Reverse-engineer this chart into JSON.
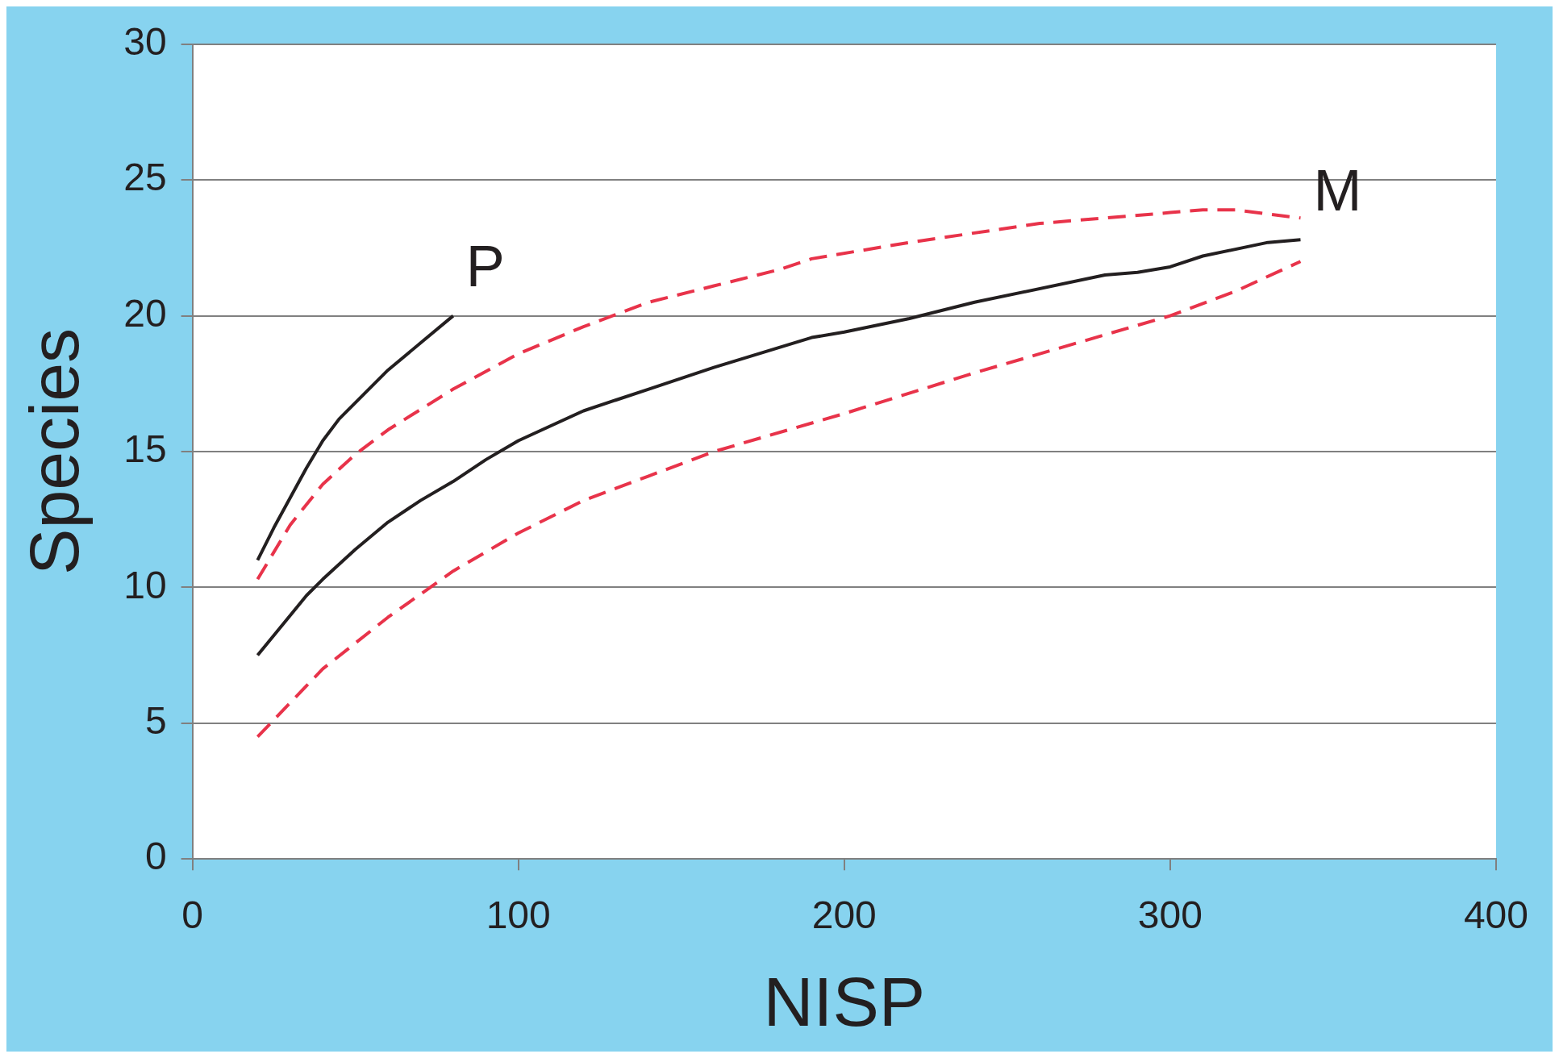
{
  "chart_data": {
    "type": "line",
    "xlabel": "NISP",
    "ylabel": "Species",
    "xlim": [
      0,
      400
    ],
    "xticks": [
      0,
      100,
      200,
      300,
      400
    ],
    "ylim": [
      0,
      30
    ],
    "yticks": [
      0,
      5,
      10,
      15,
      20,
      25,
      30
    ],
    "grid": "y",
    "legend": false,
    "marker": "none",
    "series": [
      {
        "name": "P",
        "color": "#231f20",
        "line_style": "solid",
        "x": [
          20,
          25,
          30,
          35,
          40,
          45,
          60,
          70,
          80
        ],
        "values": [
          11.0,
          12.2,
          13.3,
          14.4,
          15.4,
          16.2,
          18.0,
          19.0,
          20.0
        ]
      },
      {
        "name": "M",
        "color": "#231f20",
        "line_style": "solid",
        "x": [
          20,
          35,
          40,
          50,
          60,
          70,
          80,
          90,
          100,
          120,
          130,
          140,
          160,
          190,
          200,
          220,
          240,
          280,
          290,
          300,
          310,
          330,
          340
        ],
        "values": [
          7.5,
          9.7,
          10.3,
          11.4,
          12.4,
          13.2,
          13.9,
          14.7,
          15.4,
          16.5,
          16.9,
          17.3,
          18.1,
          19.2,
          19.4,
          19.9,
          20.5,
          21.5,
          21.6,
          21.8,
          22.2,
          22.7,
          22.8
        ]
      },
      {
        "color": "#e8334a",
        "line_style": "dashed",
        "x": [
          20,
          30,
          40,
          50,
          60,
          80,
          100,
          120,
          140,
          160,
          180,
          190,
          220,
          260,
          280,
          300,
          310,
          320,
          340
        ],
        "values": [
          10.3,
          12.3,
          13.8,
          14.9,
          15.8,
          17.3,
          18.6,
          19.6,
          20.5,
          21.1,
          21.7,
          22.1,
          22.7,
          23.4,
          23.6,
          23.8,
          23.9,
          23.9,
          23.6
        ]
      },
      {
        "color": "#e8334a",
        "line_style": "dashed",
        "x": [
          20,
          40,
          60,
          80,
          100,
          120,
          140,
          160,
          200,
          240,
          280,
          300,
          320,
          340
        ],
        "values": [
          4.5,
          7.0,
          8.9,
          10.6,
          12.0,
          13.2,
          14.1,
          15.0,
          16.4,
          17.9,
          19.3,
          20.0,
          20.9,
          22.0
        ]
      }
    ]
  }
}
